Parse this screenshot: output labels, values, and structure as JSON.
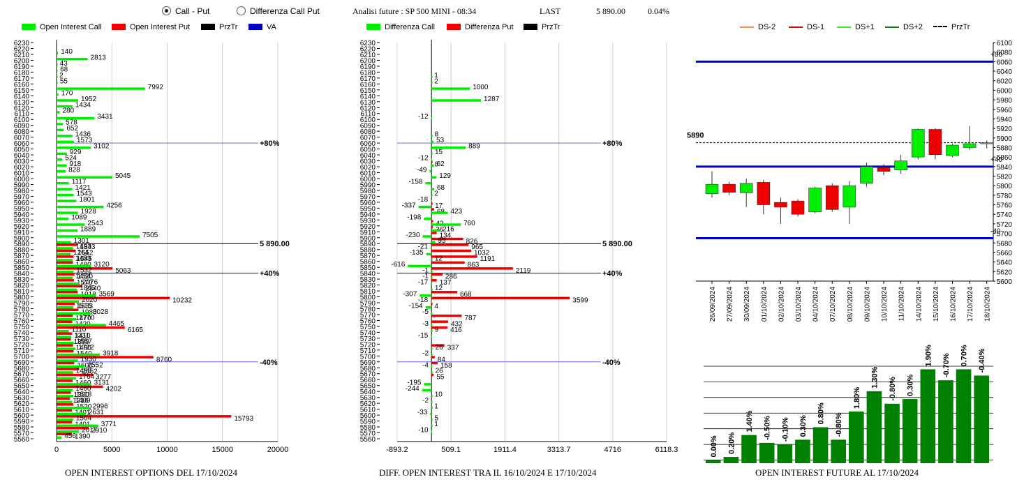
{
  "header": {
    "radio_call_put": "Call - Put",
    "radio_diff": "Differenza Call Put",
    "analysis_title": "Analisi future : SP 500 MINI - 08:34",
    "last_label": "LAST",
    "last_value": "5 890.00",
    "last_change": "0.04%"
  },
  "left_panel": {
    "legend": [
      "Open Interest Call",
      "Open Interest Put",
      "PrzTr",
      "VA"
    ],
    "footer": "OPEN INTEREST OPTIONS DEL 17/10/2024",
    "ref_lines": [
      "+80%",
      "5 890.00",
      "+40%",
      "-40%"
    ]
  },
  "mid_panel": {
    "legend": [
      "Differenza Call",
      "Differenza Put",
      "PrzTr"
    ],
    "footer": "DIFF. OPEN INTEREST TRA IL 16/10/2024 E 17/10/2024",
    "ref_lines": [
      "+80%",
      "5 890.00",
      "+40%",
      "-40%"
    ]
  },
  "right_panel": {
    "legend": [
      "DS-2",
      "DS-1",
      "DS+1",
      "DS+2",
      "PrzTr"
    ],
    "footer": "OPEN INTEREST FUTURE AL 17/10/2024",
    "price_label": "5890",
    "level_labels": [
      "+80",
      "+40",
      "-40"
    ]
  },
  "colors": {
    "call": "#00ee00",
    "put": "#ee0000",
    "va": "#0000cc",
    "bar_pct": "#008000"
  },
  "chart_data": [
    {
      "type": "bar",
      "name": "open-interest-options",
      "orientation": "horizontal",
      "strikes": [
        "6230",
        "6220",
        "6210",
        "6200",
        "6190",
        "6180",
        "6170",
        "6160",
        "6150",
        "6140",
        "6130",
        "6120",
        "6110",
        "6100",
        "6090",
        "6080",
        "6070",
        "6060",
        "6050",
        "6040",
        "6030",
        "6020",
        "6010",
        "6000",
        "5990",
        "5980",
        "5970",
        "5960",
        "5950",
        "5940",
        "5930",
        "5920",
        "5910",
        "5900",
        "5890",
        "5880",
        "5870",
        "5860",
        "5850",
        "5840",
        "5830",
        "5820",
        "5810",
        "5800",
        "5790",
        "5780",
        "5770",
        "5760",
        "5750",
        "5740",
        "5730",
        "5720",
        "5710",
        "5700",
        "5690",
        "5680",
        "5670",
        "5660",
        "5650",
        "5640",
        "5630",
        "5620",
        "5610",
        "5600",
        "5590",
        "5580",
        "5570",
        "5560"
      ],
      "xlim": [
        0,
        20000
      ],
      "xticks": [
        "0",
        "5000",
        "10000",
        "15000",
        "20000"
      ],
      "series": [
        {
          "name": "Open Interest Call",
          "values": [
            0,
            0,
            140,
            2813,
            43,
            68,
            2,
            55,
            7992,
            170,
            1952,
            1434,
            280,
            3431,
            578,
            652,
            1436,
            1573,
            3102,
            929,
            524,
            918,
            828,
            5045,
            1117,
            1421,
            1543,
            1801,
            4256,
            1928,
            1089,
            2543,
            1889,
            7505,
            1301,
            1493,
            1264,
            1453,
            3120,
            1532,
            1454,
            2076,
            1845,
            3569,
            2020,
            1515,
            3028,
            1770,
            4465,
            1110,
            1331,
            1557,
            1722,
            3918,
            1930,
            2552,
            1490,
            1764,
            3131,
            1460,
            1518,
            1409,
            2996,
            2631,
            1504,
            3771,
            2017,
            456
          ]
        },
        {
          "name": "Open Interest Put",
          "values": [
            0,
            0,
            0,
            0,
            0,
            0,
            0,
            0,
            0,
            0,
            0,
            0,
            0,
            0,
            0,
            0,
            0,
            0,
            0,
            0,
            0,
            0,
            0,
            0,
            0,
            0,
            0,
            0,
            0,
            0,
            0,
            0,
            0,
            0,
            1843,
            1652,
            1545,
            1480,
            5063,
            1620,
            1570,
            2340,
            1918,
            10232,
            1633,
            1980,
            1470,
            1420,
            6165,
            1410,
            1300,
            1490,
            1540,
            8760,
            1600,
            2052,
            3277,
            1460,
            4202,
            1300,
            1216,
            1520,
            1401,
            15793,
            1401,
            2910,
            1390,
            0
          ]
        }
      ],
      "ref_lines": [
        {
          "label": "+80%",
          "strike": 6060,
          "color": "#6666ff"
        },
        {
          "label": "5 890.00",
          "strike": 5890,
          "color": "#000000"
        },
        {
          "label": "+40%",
          "strike": 5840,
          "color": "#0000aa"
        },
        {
          "label": "-40%",
          "strike": 5690,
          "color": "#6666ff"
        }
      ]
    },
    {
      "type": "bar",
      "name": "diff-open-interest",
      "orientation": "horizontal",
      "strikes": [
        "6230",
        "6220",
        "6210",
        "6200",
        "6190",
        "6180",
        "6170",
        "6160",
        "6150",
        "6140",
        "6130",
        "6120",
        "6110",
        "6100",
        "6090",
        "6080",
        "6070",
        "6060",
        "6050",
        "6040",
        "6030",
        "6020",
        "6010",
        "6000",
        "5990",
        "5980",
        "5970",
        "5960",
        "5950",
        "5940",
        "5930",
        "5920",
        "5910",
        "5900",
        "5890",
        "5880",
        "5870",
        "5860",
        "5850",
        "5840",
        "5830",
        "5820",
        "5810",
        "5800",
        "5790",
        "5780",
        "5770",
        "5760",
        "5750",
        "5740",
        "5730",
        "5720",
        "5710",
        "5700",
        "5690",
        "5680",
        "5670",
        "5660",
        "5650",
        "5640",
        "5630",
        "5620",
        "5610",
        "5600",
        "5590",
        "5580",
        "5570",
        "5560"
      ],
      "xlim": [
        -893.2,
        6118.3
      ],
      "xticks": [
        "-893.2",
        "509.1",
        "1911.4",
        "3313.7",
        "4716",
        "6118.3"
      ],
      "series": [
        {
          "name": "Differenza Call",
          "values": [
            0,
            0,
            0,
            0,
            0,
            0,
            1,
            2,
            1000,
            0,
            1287,
            0,
            0,
            -12,
            0,
            0,
            8,
            53,
            889,
            15,
            -12,
            62,
            -49,
            129,
            -158,
            68,
            2,
            -18,
            -337,
            423,
            -198,
            760,
            216,
            -230,
            95,
            -21,
            -135,
            12,
            -616,
            -1,
            -1,
            -17,
            12,
            -307,
            -18,
            -154,
            -5,
            0,
            -3,
            9,
            -15,
            0,
            26,
            -2,
            0,
            -4,
            26,
            0,
            -195,
            -244,
            10,
            -2,
            1,
            -33,
            5,
            1,
            -10,
            0
          ]
        },
        {
          "name": "Differenza Put",
          "values": [
            0,
            0,
            0,
            0,
            0,
            0,
            0,
            0,
            0,
            0,
            0,
            0,
            0,
            0,
            0,
            0,
            0,
            0,
            0,
            0,
            8,
            0,
            0,
            0,
            0,
            0,
            0,
            17,
            68,
            0,
            42,
            36,
            134,
            826,
            965,
            1032,
            1191,
            863,
            2119,
            286,
            137,
            0,
            668,
            3599,
            4,
            0,
            787,
            432,
            416,
            0,
            0,
            337,
            0,
            84,
            158,
            0,
            55,
            0,
            0,
            0,
            0,
            0,
            0,
            0,
            0,
            0,
            0,
            0
          ]
        }
      ],
      "ref_lines": [
        {
          "label": "+80%",
          "strike": 6060
        },
        {
          "label": "5 890.00",
          "strike": 5890
        },
        {
          "label": "+40%",
          "strike": 5840
        },
        {
          "label": "-40%",
          "strike": 5690
        }
      ]
    },
    {
      "type": "candlestick",
      "name": "future-price",
      "ylim": [
        5600,
        6100
      ],
      "yticks": [
        "6100",
        "6080",
        "6060",
        "6040",
        "6020",
        "6000",
        "5980",
        "5960",
        "5940",
        "5920",
        "5900",
        "5880",
        "5860",
        "5840",
        "5820",
        "5800",
        "5780",
        "5760",
        "5740",
        "5720",
        "5700",
        "5680",
        "5660",
        "5640",
        "5620",
        "5600"
      ],
      "dates": [
        "26/09/2024",
        "27/09/2024",
        "30/09/2024",
        "01/10/2024",
        "02/10/2024",
        "03/10/2024",
        "04/10/2024",
        "07/10/2024",
        "08/10/2024",
        "09/10/2024",
        "10/10/2024",
        "11/10/2024",
        "14/10/2024",
        "15/10/2024",
        "16/10/2024",
        "17/10/2024",
        "18/10/2024"
      ],
      "candles": [
        {
          "open": 5783,
          "close": 5803,
          "high": 5830,
          "low": 5775
        },
        {
          "open": 5803,
          "close": 5786,
          "high": 5808,
          "low": 5780
        },
        {
          "open": 5785,
          "close": 5805,
          "high": 5815,
          "low": 5755
        },
        {
          "open": 5807,
          "close": 5760,
          "high": 5812,
          "low": 5740
        },
        {
          "open": 5765,
          "close": 5755,
          "high": 5775,
          "low": 5720
        },
        {
          "open": 5768,
          "close": 5740,
          "high": 5772,
          "low": 5735
        },
        {
          "open": 5745,
          "close": 5795,
          "high": 5798,
          "low": 5742
        },
        {
          "open": 5800,
          "close": 5750,
          "high": 5805,
          "low": 5745
        },
        {
          "open": 5755,
          "close": 5800,
          "high": 5810,
          "low": 5720
        },
        {
          "open": 5805,
          "close": 5840,
          "high": 5848,
          "low": 5798
        },
        {
          "open": 5838,
          "close": 5830,
          "high": 5845,
          "low": 5822
        },
        {
          "open": 5833,
          "close": 5852,
          "high": 5865,
          "low": 5825
        },
        {
          "open": 5860,
          "close": 5918,
          "high": 5920,
          "low": 5855
        },
        {
          "open": 5918,
          "close": 5865,
          "high": 5920,
          "low": 5855
        },
        {
          "open": 5863,
          "close": 5885,
          "high": 5888,
          "low": 5860
        },
        {
          "open": 5880,
          "close": 5888,
          "high": 5925,
          "low": 5875
        },
        {
          "open": 5888,
          "close": 5890,
          "high": 5895,
          "low": 5878
        }
      ],
      "bullish_color": "#00ee00",
      "bearish_color": "#ee0000",
      "levels": [
        {
          "label": "+80",
          "value": 6060
        },
        {
          "label": "+40",
          "value": 5840
        },
        {
          "label": "-40",
          "value": 5690
        }
      ],
      "last_price": 5890
    },
    {
      "type": "bar",
      "name": "future-oi-change",
      "categories": [
        "26/09/2024",
        "27/09/2024",
        "30/09/2024",
        "01/10/2024",
        "02/10/2024",
        "03/10/2024",
        "04/10/2024",
        "07/10/2024",
        "08/10/2024",
        "09/10/2024",
        "10/10/2024",
        "11/10/2024",
        "14/10/2024",
        "15/10/2024",
        "16/10/2024",
        "17/10/2024"
      ],
      "labels": [
        "0.00%",
        "0.20%",
        "1.40%",
        "-0.50%",
        "-0.10%",
        "0.30%",
        "0.80%",
        "-0.80%",
        "1.80%",
        "1.30%",
        "-0.80%",
        "0.30%",
        "1.90%",
        "-0.70%",
        "0.70%",
        "-0.40%"
      ],
      "cumulative_values": [
        0.0,
        0.2,
        1.6,
        1.1,
        1.0,
        1.3,
        2.1,
        1.3,
        3.1,
        4.4,
        3.6,
        3.9,
        5.8,
        5.1,
        5.8,
        5.4
      ],
      "ylim": [
        -0.2,
        6.4
      ]
    }
  ]
}
